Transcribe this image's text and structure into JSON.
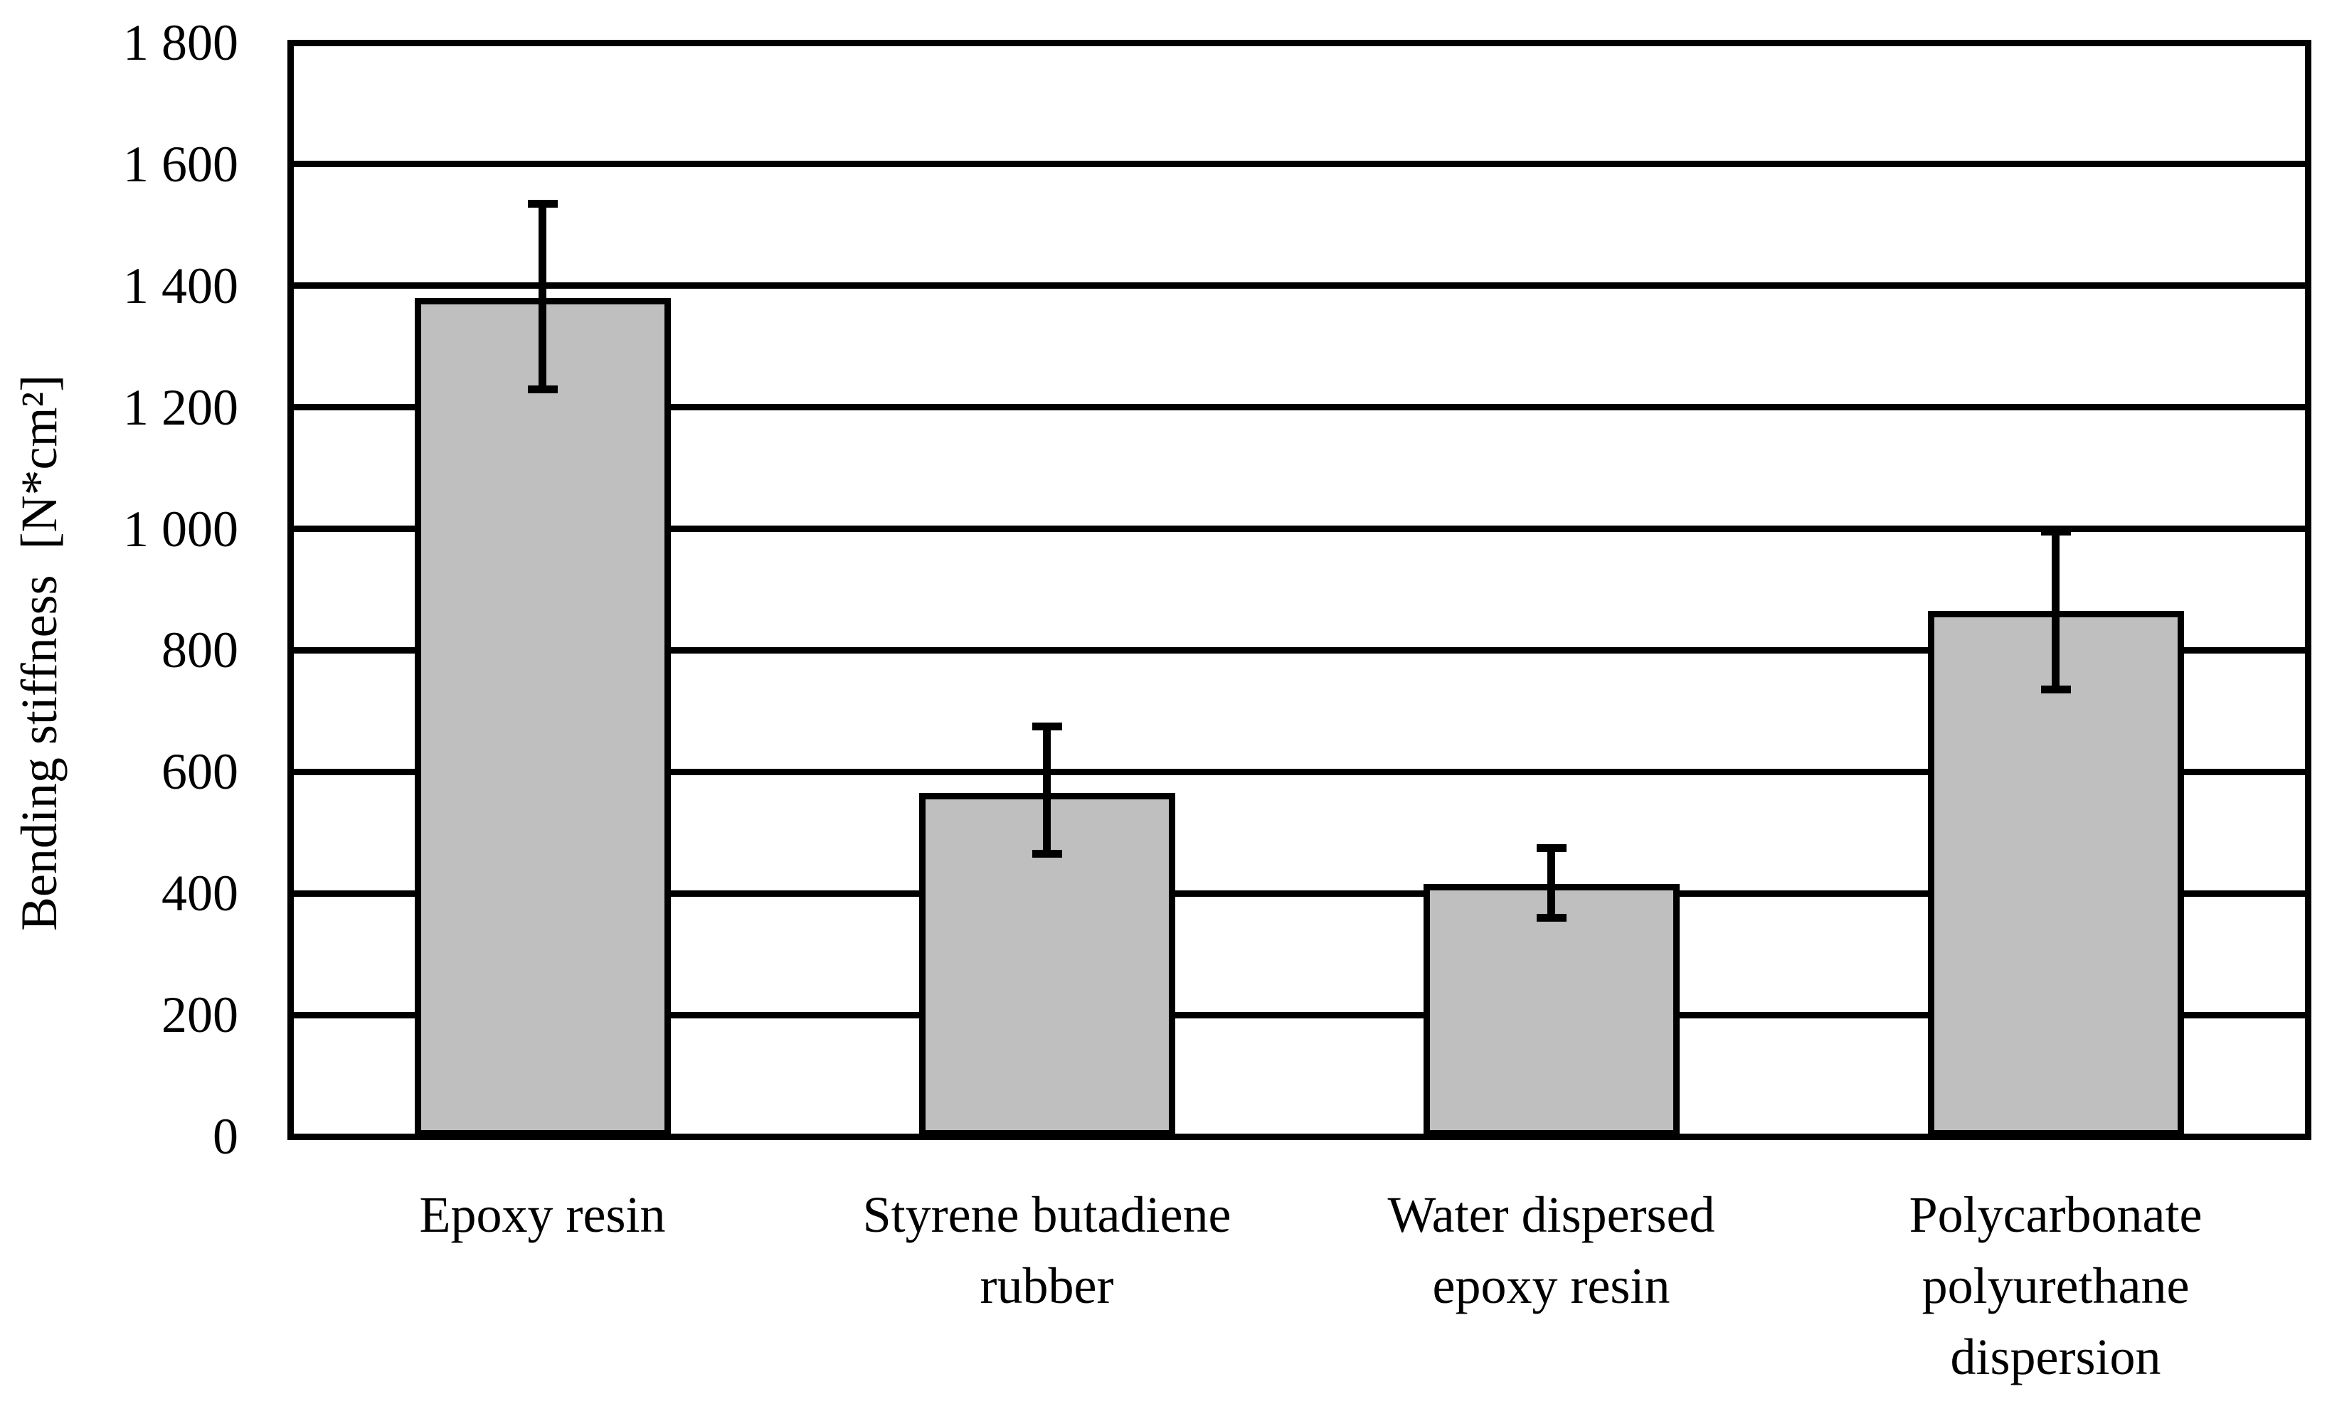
{
  "chart_data": {
    "type": "bar",
    "title": "",
    "xlabel": "",
    "ylabel": "Bending stiffness  [N*cm²]",
    "ylim": [
      0,
      1800
    ],
    "ytick_step": 200,
    "ytick_labels": [
      "0",
      "200",
      "400",
      "600",
      "800",
      "1 000",
      "1 200",
      "1 400",
      "1 600",
      "1 800"
    ],
    "grid": "horizontal-major",
    "legend_position": "none",
    "bar_fill_color": "#bfbfbf",
    "line_color": "#000000",
    "background_color": "#ffffff",
    "categories": [
      "Epoxy resin",
      "Styrene butadiene rubber",
      "Water dispersed epoxy resin",
      "Polycarbonate polyurethane dispersion"
    ],
    "category_label_lines": [
      [
        "Epoxy resin"
      ],
      [
        "Styrene butadiene",
        "rubber"
      ],
      [
        "Water dispersed",
        "epoxy resin"
      ],
      [
        "Polycarbonate",
        "polyurethane",
        "dispersion"
      ]
    ],
    "series": [
      {
        "name": "Bending stiffness",
        "values": [
          1380,
          565,
          415,
          865
        ],
        "error_low": [
          1230,
          465,
          360,
          735
        ],
        "error_high": [
          1535,
          675,
          475,
          995
        ]
      }
    ]
  }
}
